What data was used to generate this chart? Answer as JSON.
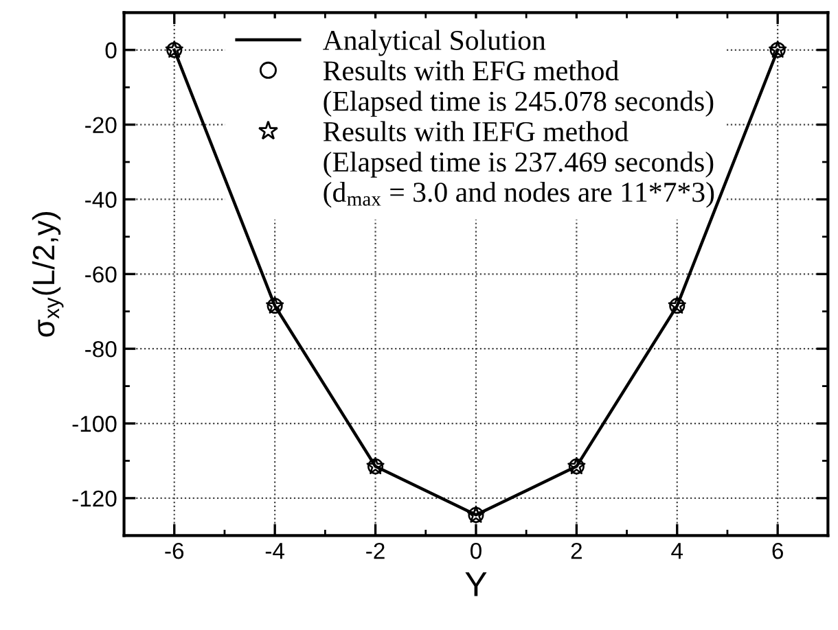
{
  "chart_data": {
    "type": "line",
    "xlabel": "Y",
    "ylabel": "σ$_{xy}$(L/2,y)",
    "x": [
      -6,
      -4,
      -2,
      0,
      2,
      4,
      6
    ],
    "series": [
      {
        "name": "Analytical Solution",
        "color": "#000000",
        "marker": "none",
        "line_style": "solid",
        "values": [
          0,
          -68.5,
          -111.5,
          -124.5,
          -111.5,
          -68.5,
          0
        ]
      },
      {
        "name": "Results with EFG method\n(Elapsed time is 245.078 seconds)",
        "type": "scatter",
        "color": "#000000",
        "marker": "circle",
        "values": [
          0,
          -68.5,
          -111.5,
          -124.5,
          -111.5,
          -68.5,
          0
        ]
      },
      {
        "name": "Results with IEFG method\n(Elapsed time is 237.469 seconds)\n(d$_{max}$ = 3.0 and nodes are 11*7*3)",
        "type": "scatter",
        "color": "#000000",
        "marker": "star",
        "values": [
          0,
          -68.5,
          -111.5,
          -124.5,
          -111.5,
          -68.5,
          0
        ]
      }
    ],
    "xlim": [
      -7,
      7
    ],
    "xticks": [
      -6,
      -4,
      -2,
      0,
      2,
      4,
      6
    ],
    "ylim": [
      -130,
      10
    ],
    "yticks": [
      -120,
      -100,
      -80,
      -60,
      -40,
      -20,
      0
    ],
    "grid": true,
    "legend": "top"
  }
}
